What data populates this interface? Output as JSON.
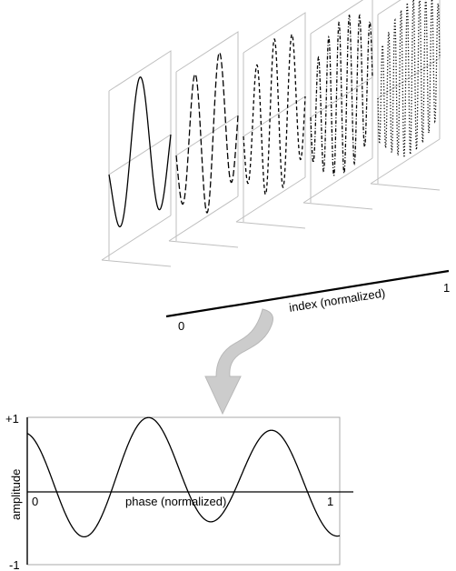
{
  "top_panel": {
    "axis_label": "index (normalized)",
    "axis_start": "0",
    "axis_end": "1",
    "frame_count": 5,
    "frame_cycles": [
      1.5,
      2.5,
      3.5,
      6,
      10
    ],
    "frame_dash_styles": [
      "solid",
      "long-dash",
      "dash",
      "dot-dash",
      "dot"
    ]
  },
  "arrow": {
    "color": "#cccccc",
    "direction": "down"
  },
  "bottom_panel": {
    "y_top_label": "+1",
    "y_bottom_label": "-1",
    "y_axis_label": "amplitude",
    "x_start_label": "0",
    "x_end_label": "1",
    "x_axis_label": "phase (normalized)"
  }
}
